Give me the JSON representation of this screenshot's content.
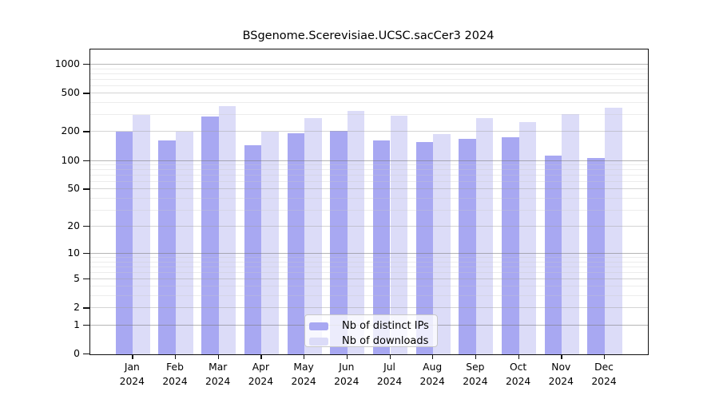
{
  "chart_data": {
    "type": "bar",
    "title": "BSgenome.Scerevisiae.UCSC.sacCer3 2024",
    "year_label": "2024",
    "categories": [
      "Jan",
      "Feb",
      "Mar",
      "Apr",
      "May",
      "Jun",
      "Jul",
      "Aug",
      "Sep",
      "Oct",
      "Nov",
      "Dec"
    ],
    "series": [
      {
        "name": "Nb of distinct IPs",
        "color": "#a8a8f2",
        "values": [
          200,
          163,
          292,
          145,
          195,
          206,
          163,
          156,
          170,
          177,
          113,
          108
        ]
      },
      {
        "name": "Nb of downloads",
        "color": "#dcdcf8",
        "values": [
          300,
          200,
          372,
          200,
          278,
          330,
          295,
          189,
          280,
          253,
          306,
          357
        ]
      }
    ],
    "y_ticks": [
      0,
      1,
      2,
      5,
      10,
      20,
      50,
      100,
      200,
      500,
      1000
    ],
    "y_scale": "log10(1+x)",
    "ylim": [
      0,
      1436
    ],
    "grid": true,
    "legend_position": "inside-bottom-center",
    "axis_color": "#111111"
  }
}
